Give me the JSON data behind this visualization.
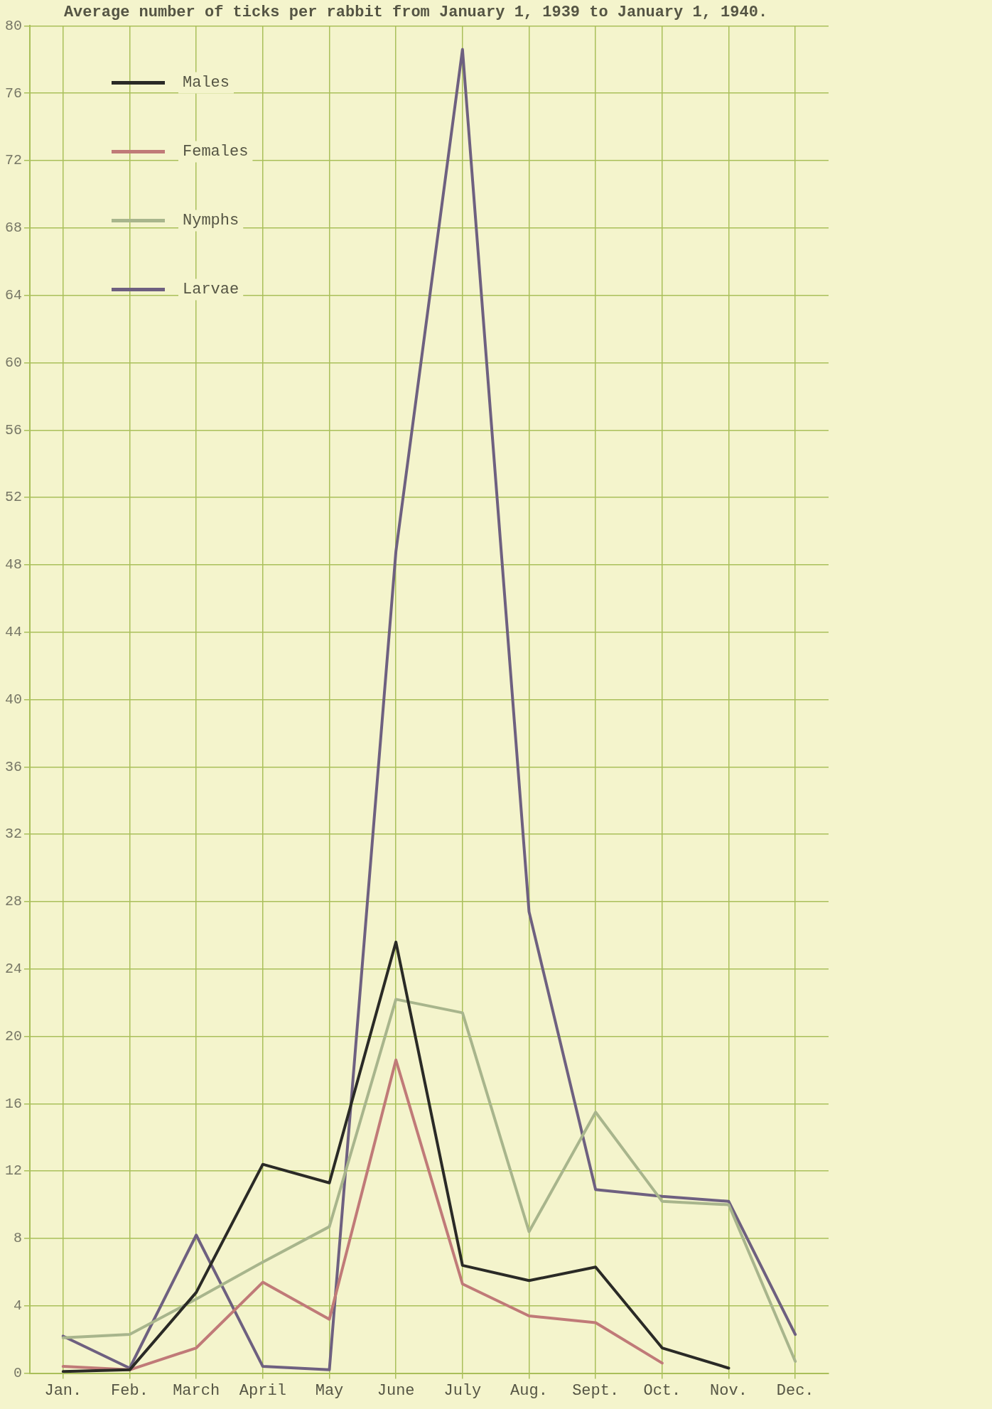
{
  "chart_data": {
    "type": "line",
    "title": "Average number of ticks per rabbit from January 1, 1939 to January 1, 1940.",
    "categories": [
      "Jan.",
      "Feb.",
      "March",
      "April",
      "May",
      "June",
      "July",
      "Aug.",
      "Sept.",
      "Oct.",
      "Nov.",
      "Dec."
    ],
    "series": [
      {
        "name": "Males",
        "color": "#2a2a26",
        "values": [
          0.1,
          0.2,
          4.8,
          12.4,
          11.3,
          25.6,
          6.4,
          5.5,
          6.3,
          1.5,
          0.3,
          null
        ]
      },
      {
        "name": "Females",
        "color": "#c07a78",
        "values": [
          0.4,
          0.2,
          1.5,
          5.4,
          3.2,
          18.6,
          5.3,
          3.4,
          3.0,
          0.6,
          null,
          null
        ]
      },
      {
        "name": "Nymphs",
        "color": "#a8b58c",
        "values": [
          2.1,
          2.3,
          4.4,
          6.6,
          8.7,
          22.2,
          21.4,
          8.4,
          15.5,
          10.2,
          10.0,
          0.7
        ]
      },
      {
        "name": "Larvae",
        "color": "#6e6080",
        "values": [
          2.2,
          0.3,
          8.2,
          0.4,
          0.2,
          48.8,
          78.6,
          27.4,
          10.9,
          10.5,
          10.2,
          2.3
        ]
      }
    ],
    "ylim": [
      0,
      80
    ],
    "yticks": [
      0,
      4,
      8,
      12,
      16,
      20,
      24,
      28,
      32,
      36,
      40,
      44,
      48,
      52,
      56,
      60,
      64,
      68,
      72,
      76,
      80
    ],
    "grid": true,
    "legend": "top left",
    "marker": "none",
    "line_style": "solid"
  }
}
